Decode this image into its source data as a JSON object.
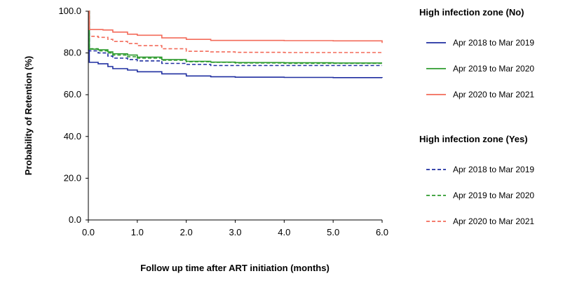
{
  "chart_data": {
    "type": "line",
    "title": "",
    "xlabel": "Follow up time after ART initiation (months)",
    "ylabel": "Probability of Retention (%)",
    "xlim": [
      0,
      6
    ],
    "ylim": [
      0,
      100
    ],
    "x_ticks": [
      "0.0",
      "1.0",
      "2.0",
      "3.0",
      "4.0",
      "5.0",
      "6.0"
    ],
    "y_ticks": [
      "0.0",
      "20.0",
      "40.0",
      "60.0",
      "80.0",
      "100.0"
    ],
    "grid": false,
    "legend_position": "right",
    "legend_groups": [
      {
        "title": "High infection zone (No)",
        "line_style": "solid",
        "series": [
          {
            "name": "Apr 2018 to Mar 2019",
            "color": "#1f2ea0",
            "points": [
              [
                0,
                100
              ],
              [
                0.02,
                100
              ],
              [
                0.02,
                75.5
              ],
              [
                0.2,
                74.8
              ],
              [
                0.4,
                73.5
              ],
              [
                0.5,
                72.5
              ],
              [
                0.8,
                71.8
              ],
              [
                1.0,
                71.0
              ],
              [
                1.5,
                70.0
              ],
              [
                2.0,
                69.0
              ],
              [
                2.5,
                68.6
              ],
              [
                3.0,
                68.4
              ],
              [
                4.0,
                68.3
              ],
              [
                5.0,
                68.2
              ],
              [
                6.0,
                68.1
              ]
            ]
          },
          {
            "name": "Apr 2019 to Mar 2020",
            "color": "#2e9b2e",
            "points": [
              [
                0,
                100
              ],
              [
                0.02,
                100
              ],
              [
                0.02,
                81.8
              ],
              [
                0.2,
                81.5
              ],
              [
                0.4,
                80.5
              ],
              [
                0.5,
                79.6
              ],
              [
                0.8,
                79.0
              ],
              [
                1.0,
                78.0
              ],
              [
                1.5,
                76.8
              ],
              [
                2.0,
                76.0
              ],
              [
                2.5,
                75.6
              ],
              [
                3.0,
                75.4
              ],
              [
                4.0,
                75.3
              ],
              [
                5.0,
                75.2
              ],
              [
                6.0,
                75.2
              ]
            ]
          },
          {
            "name": "Apr 2020 to  Mar 2021",
            "color": "#f36b5a",
            "points": [
              [
                0,
                100
              ],
              [
                0.02,
                100
              ],
              [
                0.02,
                91.2
              ],
              [
                0.3,
                91.0
              ],
              [
                0.5,
                90.0
              ],
              [
                0.8,
                89.0
              ],
              [
                1.0,
                88.5
              ],
              [
                1.5,
                87.2
              ],
              [
                2.0,
                86.5
              ],
              [
                2.5,
                86.0
              ],
              [
                3.0,
                86.0
              ],
              [
                4.0,
                85.9
              ],
              [
                5.0,
                85.8
              ],
              [
                5.95,
                85.8
              ],
              [
                6.0,
                84.8
              ]
            ]
          }
        ]
      },
      {
        "title": "High infection zone (Yes)",
        "line_style": "dashed",
        "series": [
          {
            "name": "Apr 2018 to Mar 2019",
            "color": "#1f2ea0",
            "points": [
              [
                0,
                100
              ],
              [
                0.02,
                100
              ],
              [
                0.02,
                81.0
              ],
              [
                0.2,
                80.0
              ],
              [
                0.4,
                78.5
              ],
              [
                0.5,
                77.5
              ],
              [
                0.8,
                76.8
              ],
              [
                1.0,
                76.2
              ],
              [
                1.5,
                75.0
              ],
              [
                2.0,
                74.5
              ],
              [
                2.5,
                74.0
              ],
              [
                3.0,
                74.0
              ],
              [
                4.0,
                74.0
              ],
              [
                5.0,
                74.0
              ],
              [
                6.0,
                74.0
              ]
            ]
          },
          {
            "name": "Apr 2019 to Mar 2020",
            "color": "#2e9b2e",
            "points": [
              [
                0,
                100
              ],
              [
                0.02,
                100
              ],
              [
                0.02,
                82.0
              ],
              [
                0.2,
                81.0
              ],
              [
                0.4,
                80.0
              ],
              [
                0.5,
                79.0
              ],
              [
                0.8,
                78.2
              ],
              [
                1.0,
                77.5
              ],
              [
                1.5,
                76.5
              ],
              [
                2.0,
                75.8
              ],
              [
                2.5,
                75.5
              ],
              [
                3.0,
                75.2
              ],
              [
                4.0,
                75.0
              ],
              [
                5.0,
                75.0
              ],
              [
                6.0,
                75.0
              ]
            ]
          },
          {
            "name": "Apr 2020 to Mar 2021",
            "color": "#f36b5a",
            "points": [
              [
                0,
                100
              ],
              [
                0.02,
                100
              ],
              [
                0.02,
                88.0
              ],
              [
                0.2,
                87.5
              ],
              [
                0.4,
                86.5
              ],
              [
                0.5,
                85.5
              ],
              [
                0.8,
                84.5
              ],
              [
                1.0,
                83.5
              ],
              [
                1.5,
                82.0
              ],
              [
                2.0,
                80.8
              ],
              [
                2.5,
                80.5
              ],
              [
                3.0,
                80.3
              ],
              [
                4.0,
                80.2
              ],
              [
                5.0,
                80.2
              ],
              [
                6.0,
                80.2
              ]
            ]
          }
        ]
      }
    ]
  }
}
